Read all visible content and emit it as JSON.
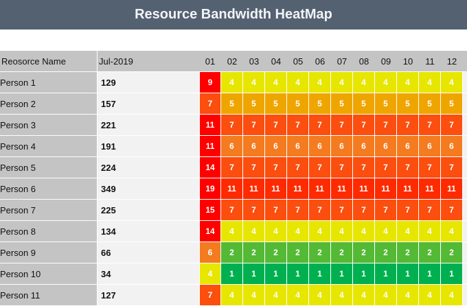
{
  "header": {
    "title": "Resource Bandwidth HeatMap"
  },
  "colors": {
    "title_bg": "#546171",
    "level_1": "#00b050",
    "level_2": "#54b935",
    "level_4": "#e6e600",
    "level_5": "#efa500",
    "level_6": "#f47b1f",
    "level_7": "#fb4e0f",
    "level_high": "#fe2a00",
    "level_max": "#ff0000"
  },
  "chart_data": {
    "type": "heatmap",
    "title": "Resource Bandwidth HeatMap",
    "row_header": "Reosorce Name",
    "total_header": "Jul-2019",
    "columns": [
      "01",
      "02",
      "03",
      "04",
      "05",
      "06",
      "07",
      "08",
      "09",
      "10",
      "11",
      "12"
    ],
    "rows": [
      {
        "name": "Person 1",
        "total": 129,
        "values": [
          9,
          4,
          4,
          4,
          4,
          4,
          4,
          4,
          4,
          4,
          4,
          4
        ]
      },
      {
        "name": "Person 2",
        "total": 157,
        "values": [
          7,
          5,
          5,
          5,
          5,
          5,
          5,
          5,
          5,
          5,
          5,
          5
        ]
      },
      {
        "name": "Person 3",
        "total": 221,
        "values": [
          11,
          7,
          7,
          7,
          7,
          7,
          7,
          7,
          7,
          7,
          7,
          7
        ]
      },
      {
        "name": "Person 4",
        "total": 191,
        "values": [
          11,
          6,
          6,
          6,
          6,
          6,
          6,
          6,
          6,
          6,
          6,
          6
        ]
      },
      {
        "name": "Person 5",
        "total": 224,
        "values": [
          14,
          7,
          7,
          7,
          7,
          7,
          7,
          7,
          7,
          7,
          7,
          7
        ]
      },
      {
        "name": "Person 6",
        "total": 349,
        "values": [
          19,
          11,
          11,
          11,
          11,
          11,
          11,
          11,
          11,
          11,
          11,
          11
        ]
      },
      {
        "name": "Person 7",
        "total": 225,
        "values": [
          15,
          7,
          7,
          7,
          7,
          7,
          7,
          7,
          7,
          7,
          7,
          7
        ]
      },
      {
        "name": "Person 8",
        "total": 134,
        "values": [
          14,
          4,
          4,
          4,
          4,
          4,
          4,
          4,
          4,
          4,
          4,
          4
        ]
      },
      {
        "name": "Person 9",
        "total": 66,
        "values": [
          6,
          2,
          2,
          2,
          2,
          2,
          2,
          2,
          2,
          2,
          2,
          2
        ]
      },
      {
        "name": "Person 10",
        "total": 34,
        "values": [
          4,
          1,
          1,
          1,
          1,
          1,
          1,
          1,
          1,
          1,
          1,
          1
        ]
      },
      {
        "name": "Person 11",
        "total": 127,
        "values": [
          7,
          4,
          4,
          4,
          4,
          4,
          4,
          4,
          4,
          4,
          4,
          4
        ]
      }
    ]
  }
}
